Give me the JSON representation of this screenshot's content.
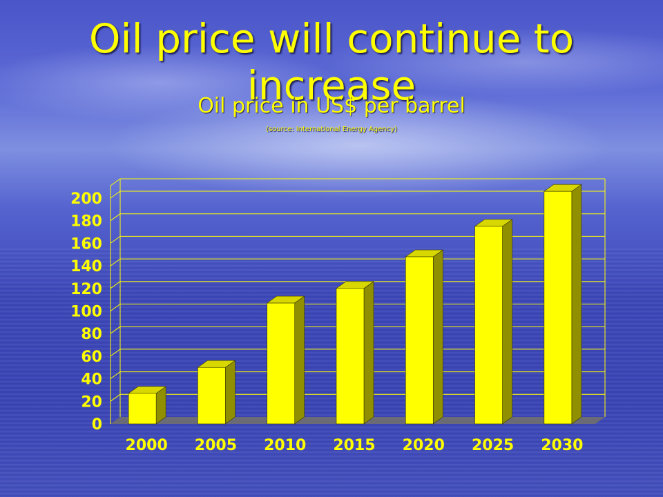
{
  "slide": {
    "title": "Oil price will continue to increase",
    "subtitle": "Oil price in US$ per barrel",
    "source": "(source: International Energy Agency)"
  },
  "colors": {
    "bar_front": "#ffff00",
    "bar_side": "#8f8f00",
    "bar_top": "#d8d800",
    "grid": "#ffff00",
    "floor": "#6f6f6f",
    "text": "#ffff00"
  },
  "chart_data": {
    "type": "bar",
    "categories": [
      "2000",
      "2005",
      "2010",
      "2015",
      "2020",
      "2025",
      "2030"
    ],
    "values": [
      27,
      50,
      107,
      120,
      148,
      175,
      206
    ],
    "ylim": [
      0,
      200
    ],
    "yticks": [
      0,
      20,
      40,
      60,
      80,
      100,
      120,
      140,
      160,
      180,
      200
    ],
    "grid": true,
    "legend": "none",
    "style": "3d-columns"
  }
}
